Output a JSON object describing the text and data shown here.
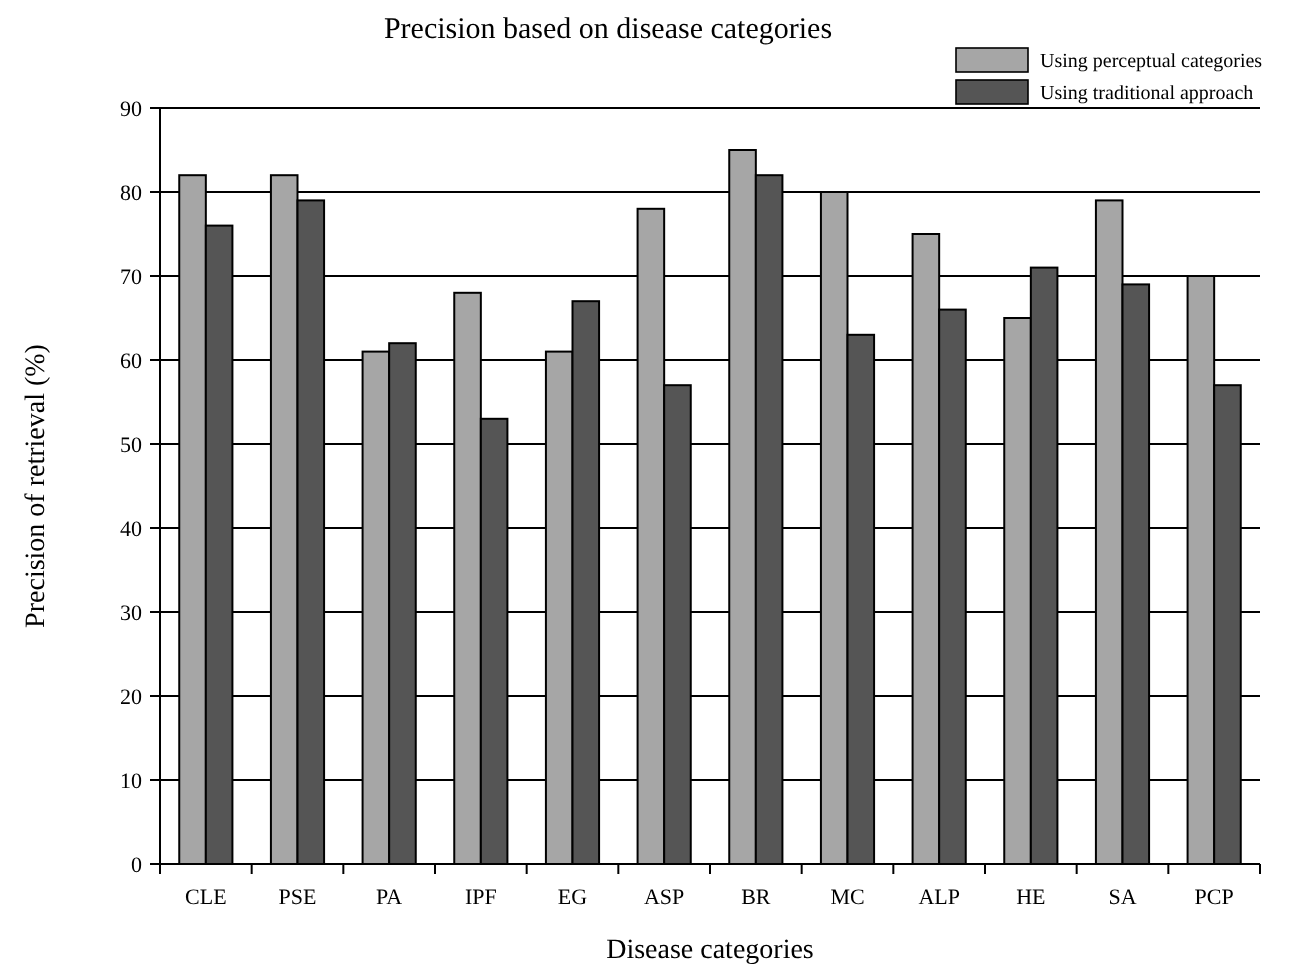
{
  "chart_data": {
    "type": "bar",
    "title": "Precision based on disease categories",
    "xlabel": "Disease categories",
    "ylabel": "Precision of retrieval (%)",
    "categories": [
      "CLE",
      "PSE",
      "PA",
      "IPF",
      "EG",
      "ASP",
      "BR",
      "MC",
      "ALP",
      "HE",
      "SA",
      "PCP"
    ],
    "series": [
      {
        "name": "Using perceptual categories",
        "color": "#a6a6a6",
        "values": [
          82,
          82,
          61,
          68,
          61,
          78,
          85,
          80,
          75,
          65,
          79,
          70
        ]
      },
      {
        "name": "Using traditional approach",
        "color": "#555555",
        "values": [
          76,
          79,
          62,
          53,
          67,
          57,
          82,
          63,
          66,
          71,
          69,
          57
        ]
      }
    ],
    "ylim": [
      0,
      90
    ],
    "yticks": [
      0,
      10,
      20,
      30,
      40,
      50,
      60,
      70,
      80,
      90
    ],
    "grid": "y",
    "legend": "top right"
  }
}
